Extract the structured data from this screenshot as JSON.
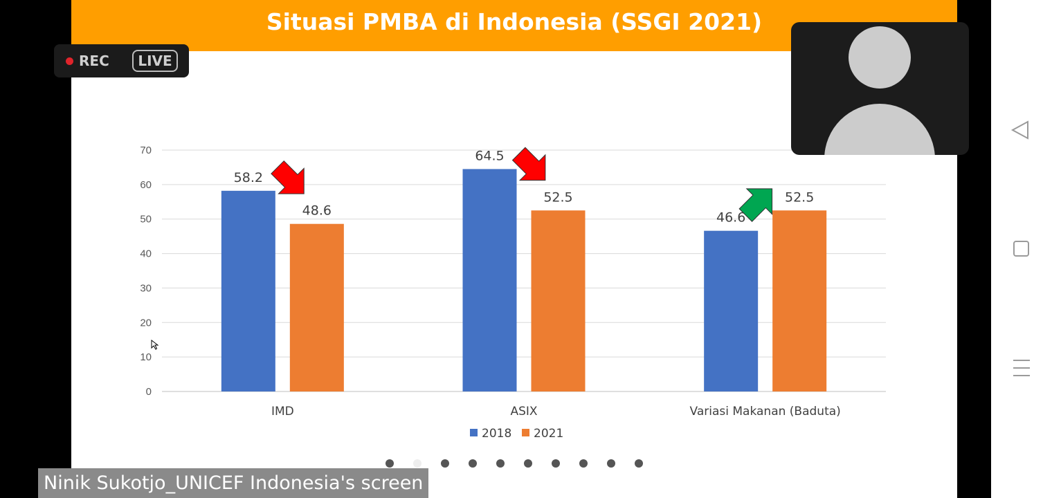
{
  "slide": {
    "title": "Situasi PMBA di Indonesia (SSGI 2021)"
  },
  "recording": {
    "rec_label": "REC",
    "live_label": "LIVE",
    "rec_color": "#e0242b"
  },
  "participant": {
    "avatar_icon": "person-silhouette-icon"
  },
  "screen_share": {
    "label": "Ninik Sukotjo_UNICEF Indonesia's screen"
  },
  "pager": {
    "total": 10,
    "active_index": 1
  },
  "nav": {
    "items": [
      "back-icon",
      "home-icon",
      "recents-icon"
    ]
  },
  "colors": {
    "title_bar": "#ff9e00",
    "series_2018": "#4472c4",
    "series_2021": "#ed7d31",
    "arrow_down": "#ff0000",
    "arrow_up": "#00a651"
  },
  "chart_data": {
    "type": "bar",
    "categories": [
      "IMD",
      "ASIX",
      "Variasi Makanan (Baduta)"
    ],
    "series": [
      {
        "name": "2018",
        "values": [
          58.2,
          64.5,
          46.6
        ],
        "color": "#4472c4"
      },
      {
        "name": "2021",
        "values": [
          48.6,
          52.5,
          52.5
        ],
        "color": "#ed7d31"
      }
    ],
    "data_labels": [
      [
        "58.2",
        "64.5",
        "46.6"
      ],
      [
        "48.6",
        "52.5",
        "52.5"
      ]
    ],
    "ylim": [
      0,
      70
    ],
    "yticks": [
      0,
      10,
      20,
      30,
      40,
      50,
      60,
      70
    ],
    "grid": true,
    "legend": "bottom",
    "trend_arrows": [
      "down",
      "down",
      "up"
    ]
  }
}
